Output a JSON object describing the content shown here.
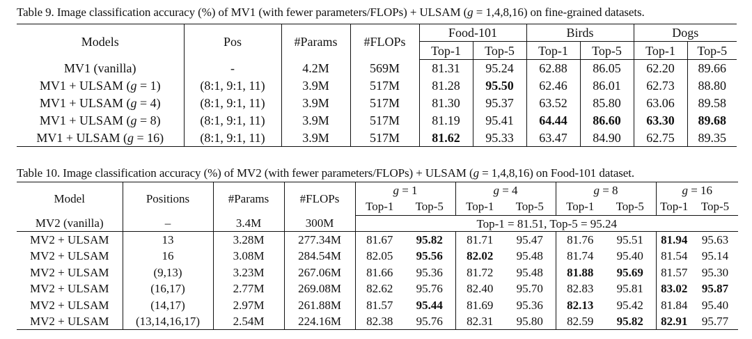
{
  "table9": {
    "caption_pre": "Table 9. Image classification accuracy (%) of MV1 (with fewer parameters/FLOPs) + ULSAM (",
    "caption_g": "g",
    "caption_post": " = 1,4,8,16) on fine-grained datasets.",
    "headers": {
      "models": "Models",
      "pos": "Pos",
      "params": "#Params",
      "flops": "#FLOPs",
      "groups": [
        "Food-101",
        "Birds",
        "Dogs"
      ],
      "top1": "Top-1",
      "top5": "Top-5"
    },
    "rows": [
      {
        "model_pre": "MV1 (vanilla)",
        "g": "",
        "model_post": "",
        "pos": "-",
        "params": "4.2M",
        "flops": "569M",
        "vals": [
          "81.31",
          "95.24",
          "62.88",
          "86.05",
          "62.20",
          "89.66"
        ],
        "bold": []
      },
      {
        "model_pre": "MV1 + ULSAM (",
        "g": "g",
        "model_post": " = 1)",
        "pos": "(8:1, 9:1, 11)",
        "params": "3.9M",
        "flops": "517M",
        "vals": [
          "81.28",
          "95.50",
          "62.46",
          "86.01",
          "62.73",
          "88.80"
        ],
        "bold": [
          1
        ]
      },
      {
        "model_pre": "MV1 + ULSAM (",
        "g": "g",
        "model_post": " = 4)",
        "pos": "(8:1, 9:1, 11)",
        "params": "3.9M",
        "flops": "517M",
        "vals": [
          "81.30",
          "95.37",
          "63.52",
          "85.80",
          "63.06",
          "89.58"
        ],
        "bold": []
      },
      {
        "model_pre": "MV1 + ULSAM (",
        "g": "g",
        "model_post": " = 8)",
        "pos": "(8:1, 9:1, 11)",
        "params": "3.9M",
        "flops": "517M",
        "vals": [
          "81.19",
          "95.41",
          "64.44",
          "86.60",
          "63.30",
          "89.68"
        ],
        "bold": [
          2,
          3,
          4,
          5
        ]
      },
      {
        "model_pre": "MV1 + ULSAM (",
        "g": "g",
        "model_post": " = 16)",
        "pos": "(8:1, 9:1, 11)",
        "params": "3.9M",
        "flops": "517M",
        "vals": [
          "81.62",
          "95.33",
          "63.47",
          "84.90",
          "62.75",
          "89.35"
        ],
        "bold": [
          0
        ]
      }
    ]
  },
  "table10": {
    "caption_pre": "Table 10. Image classification accuracy (%) of MV2 (with fewer parameters/FLOPs) + ULSAM (",
    "caption_g": "g",
    "caption_post": " = 1,4,8,16) on Food-101 dataset.",
    "headers": {
      "model": "Model",
      "positions": "Positions",
      "params": "#Params",
      "flops": "#FLOPs",
      "groups": [
        {
          "g": "g",
          "rest": " = 1"
        },
        {
          "g": "g",
          "rest": " = 4"
        },
        {
          "g": "g",
          "rest": " = 8"
        },
        {
          "g": "g",
          "rest": " = 16"
        }
      ],
      "top1": "Top-1",
      "top5": "Top-5"
    },
    "vanilla": {
      "model": "MV2 (vanilla)",
      "positions": "–",
      "params": "3.4M",
      "flops": "300M",
      "summary": "Top-1 = 81.51, Top-5 = 95.24"
    },
    "rows": [
      {
        "model": "MV2 + ULSAM",
        "positions": "13",
        "params": "3.28M",
        "flops": "277.34M",
        "vals": [
          "81.67",
          "95.82",
          "81.71",
          "95.47",
          "81.76",
          "95.51",
          "81.94",
          "95.63"
        ],
        "bold": [
          1,
          6
        ]
      },
      {
        "model": "MV2 + ULSAM",
        "positions": "16",
        "params": "3.08M",
        "flops": "284.54M",
        "vals": [
          "82.05",
          "95.56",
          "82.02",
          "95.48",
          "81.74",
          "95.40",
          "81.54",
          "95.14"
        ],
        "bold": [
          1,
          2
        ]
      },
      {
        "model": "MV2 + ULSAM",
        "positions": "(9,13)",
        "params": "3.23M",
        "flops": "267.06M",
        "vals": [
          "81.66",
          "95.36",
          "81.72",
          "95.48",
          "81.88",
          "95.69",
          "81.57",
          "95.30"
        ],
        "bold": [
          4,
          5
        ]
      },
      {
        "model": "MV2 + ULSAM",
        "positions": "(16,17)",
        "params": "2.77M",
        "flops": "269.08M",
        "vals": [
          "82.62",
          "95.76",
          "82.40",
          "95.70",
          "82.83",
          "95.81",
          "83.02",
          "95.87"
        ],
        "bold": [
          6,
          7
        ]
      },
      {
        "model": "MV2 + ULSAM",
        "positions": "(14,17)",
        "params": "2.97M",
        "flops": "261.88M",
        "vals": [
          "81.57",
          "95.44",
          "81.69",
          "95.36",
          "82.13",
          "95.42",
          "81.84",
          "95.40"
        ],
        "bold": [
          1,
          4
        ]
      },
      {
        "model": "MV2 + ULSAM",
        "positions": "(13,14,16,17)",
        "params": "2.54M",
        "flops": "224.16M",
        "vals": [
          "82.38",
          "95.76",
          "82.31",
          "95.80",
          "82.59",
          "95.82",
          "82.91",
          "95.77"
        ],
        "bold": [
          5,
          6
        ]
      }
    ]
  }
}
